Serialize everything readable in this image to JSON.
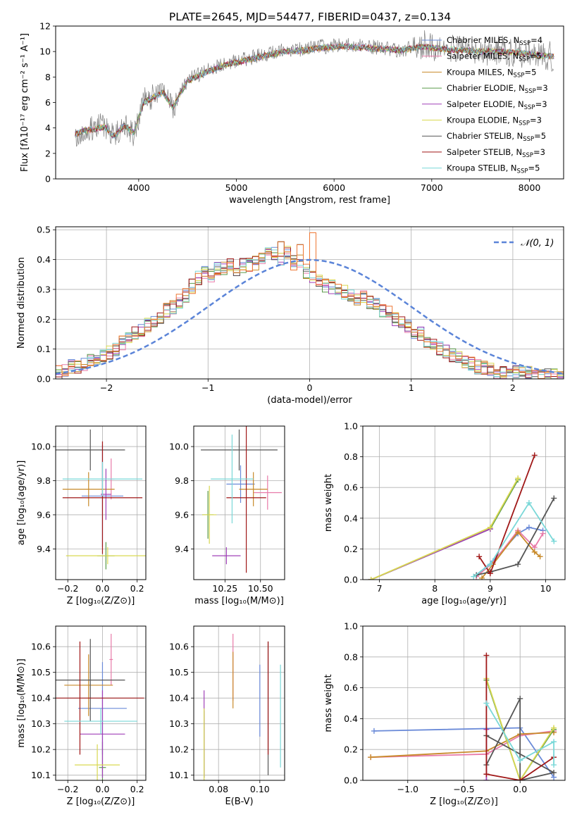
{
  "figure": {
    "title": "PLATE=2645, MJD=54477, FIBERID=0437, z=0.134"
  },
  "chart_data": [
    {
      "id": "spectrum",
      "type": "line",
      "xlabel": "wavelength [Angstrom, rest frame]",
      "ylabel": "Flux [fλ10⁻¹⁷ erg cm⁻² s⁻¹ A⁻¹]",
      "xlim": [
        3150,
        8350
      ],
      "ylim": [
        0,
        12
      ],
      "xticks": [
        4000,
        5000,
        6000,
        7000,
        8000
      ],
      "yticks": [
        0,
        2,
        4,
        6,
        8,
        10,
        12
      ],
      "grid": false,
      "legend_position": "upper-right",
      "observed": {
        "color": "#808080",
        "x": [
          3350,
          3450,
          3550,
          3650,
          3750,
          3850,
          3950,
          4050,
          4150,
          4250,
          4350,
          4500,
          4700,
          4900,
          5100,
          5300,
          5500,
          5700,
          5900,
          6100,
          6300,
          6500,
          6700,
          6900,
          7100,
          7300,
          7500,
          7700,
          7900,
          8100,
          8250
        ],
        "y": [
          3.4,
          3.9,
          4.0,
          4.3,
          3.2,
          4.4,
          3.5,
          6.2,
          6.5,
          6.9,
          5.4,
          7.8,
          8.5,
          9.1,
          9.4,
          9.8,
          10.1,
          10.2,
          10.4,
          10.5,
          10.4,
          10.3,
          10.1,
          10.6,
          10.3,
          10.2,
          10.0,
          10.1,
          9.9,
          9.7,
          9.6
        ]
      },
      "model": {
        "x": [
          3350,
          3450,
          3550,
          3650,
          3750,
          3850,
          3950,
          4050,
          4150,
          4250,
          4350,
          4500,
          4700,
          4900,
          5100,
          5300,
          5500,
          5700,
          5900,
          6100,
          6300,
          6500,
          6700,
          6900,
          7100,
          7300,
          7500,
          7700,
          7900,
          8100,
          8250
        ],
        "y": [
          3.5,
          3.8,
          3.9,
          4.1,
          3.3,
          4.2,
          3.6,
          6.0,
          6.4,
          6.8,
          5.6,
          7.7,
          8.4,
          9.0,
          9.3,
          9.7,
          10.0,
          10.1,
          10.3,
          10.4,
          10.3,
          10.2,
          10.1,
          10.4,
          10.2,
          10.1,
          10.0,
          10.0,
          9.9,
          9.7,
          9.6
        ]
      },
      "series": [
        {
          "name": "Chabrier MILES, N",
          "sub": "SSP",
          "suffix": "=4",
          "color": "#6a8ad8"
        },
        {
          "name": "Salpeter MILES, N",
          "sub": "SSP",
          "suffix": "=5",
          "color": "#e87aa8"
        },
        {
          "name": "Kroupa MILES, N",
          "sub": "SSP",
          "suffix": "=5",
          "color": "#c88a2a"
        },
        {
          "name": "Chabrier ELODIE, N",
          "sub": "SSP",
          "suffix": "=3",
          "color": "#5a9a4a"
        },
        {
          "name": "Salpeter ELODIE, N",
          "sub": "SSP",
          "suffix": "=3",
          "color": "#a040b8"
        },
        {
          "name": "Kroupa ELODIE, N",
          "sub": "SSP",
          "suffix": "=3",
          "color": "#d8d850"
        },
        {
          "name": "Chabrier STELIB, N",
          "sub": "SSP",
          "suffix": "=5",
          "color": "#555555"
        },
        {
          "name": "Salpeter STELIB, N",
          "sub": "SSP",
          "suffix": "=3",
          "color": "#a01818"
        },
        {
          "name": "Kroupa STELIB, N",
          "sub": "SSP",
          "suffix": "=5",
          "color": "#7ad8d8"
        }
      ]
    },
    {
      "id": "residuals",
      "type": "histogram",
      "xlabel": "(data-model)/error",
      "ylabel": "Normed distribution",
      "xlim": [
        -2.5,
        2.5
      ],
      "ylim": [
        0,
        0.51
      ],
      "xticks": [
        -2,
        -1,
        0,
        1,
        2
      ],
      "yticks": [
        0.0,
        0.1,
        0.2,
        0.3,
        0.4,
        0.5
      ],
      "grid": true,
      "legend_position": "upper-right",
      "normal_curve": {
        "label": "𝒩(0, 1)",
        "color": "#5b84d8",
        "mu": 0,
        "sigma": 1
      },
      "bin_edges_start": -2.5,
      "bin_width": 0.1,
      "base_values": [
        0.02,
        0.03,
        0.04,
        0.04,
        0.05,
        0.06,
        0.07,
        0.08,
        0.09,
        0.1,
        0.12,
        0.13,
        0.15,
        0.16,
        0.18,
        0.19,
        0.21,
        0.23,
        0.24,
        0.26,
        0.28,
        0.31,
        0.34,
        0.36,
        0.35,
        0.37,
        0.37,
        0.38,
        0.37,
        0.38,
        0.38,
        0.39,
        0.41,
        0.43,
        0.42,
        0.4,
        0.42,
        0.39,
        0.4,
        0.36,
        0.34,
        0.33,
        0.31,
        0.31,
        0.3,
        0.29,
        0.28,
        0.27,
        0.28,
        0.26,
        0.25,
        0.23,
        0.22,
        0.2,
        0.19,
        0.18,
        0.16,
        0.15,
        0.13,
        0.12,
        0.1,
        0.09,
        0.08,
        0.07,
        0.06,
        0.05,
        0.04,
        0.04,
        0.03,
        0.02,
        0.02,
        0.02,
        0.02,
        0.02,
        0.02,
        0.01,
        0.01,
        0.01,
        0.01,
        0.01
      ],
      "peaks": [
        {
          "bin": 35,
          "value": 0.46
        },
        {
          "bin": 40,
          "value": 0.49
        },
        {
          "bin": 38,
          "value": 0.45
        },
        {
          "bin": 33,
          "value": 0.42
        }
      ]
    },
    {
      "id": "age-vs-Z",
      "type": "errorbar",
      "xlabel": "Z [log₁₀(Z/Z⊙)]",
      "ylabel": "age  [log₁₀(age/yr)]",
      "xlim": [
        -0.27,
        0.25
      ],
      "ylim": [
        9.22,
        10.12
      ],
      "xticks": [
        -0.2,
        0.0,
        0.2
      ],
      "yticks": [
        9.4,
        9.6,
        9.8,
        10.0
      ],
      "grid": true,
      "points": [
        {
          "x": 0.0,
          "y": 9.71,
          "xerr": 0.12,
          "yerr": 0.3,
          "color": "#6a8ad8"
        },
        {
          "x": 0.05,
          "y": 9.81,
          "xerr": 0.02,
          "yerr": 0.12,
          "color": "#e87aa8"
        },
        {
          "x": -0.08,
          "y": 9.75,
          "xerr": 0.15,
          "yerr": 0.1,
          "color": "#c88a2a"
        },
        {
          "x": 0.02,
          "y": 9.36,
          "xerr": 0.05,
          "yerr": 0.08,
          "color": "#5a9a4a"
        },
        {
          "x": 0.02,
          "y": 9.72,
          "xerr": 0.03,
          "yerr": 0.15,
          "color": "#a040b8"
        },
        {
          "x": 0.03,
          "y": 9.36,
          "xerr": 0.24,
          "yerr": 0.05,
          "color": "#d8d850"
        },
        {
          "x": -0.07,
          "y": 9.98,
          "xerr": 0.2,
          "yerr": 0.12,
          "color": "#555555"
        },
        {
          "x": 0.0,
          "y": 9.7,
          "xerr": 0.23,
          "yerr": 0.33,
          "color": "#a01818"
        },
        {
          "x": 0.0,
          "y": 9.81,
          "xerr": 0.23,
          "yerr": 0.1,
          "color": "#7ad8d8"
        }
      ]
    },
    {
      "id": "age-vs-mass",
      "type": "errorbar",
      "xlabel": "mass [log₁₀(M/M⊙)]",
      "ylabel": "",
      "xlim": [
        10.03,
        10.67
      ],
      "ylim": [
        9.22,
        10.12
      ],
      "xticks": [
        10.25,
        10.5
      ],
      "yticks": [
        9.4,
        9.6,
        9.8,
        10.0
      ],
      "grid": true,
      "points": [
        {
          "x": 10.36,
          "y": 9.78,
          "xerr": 0.1,
          "yerr": 0.11,
          "color": "#6a8ad8"
        },
        {
          "x": 10.55,
          "y": 9.73,
          "xerr": 0.1,
          "yerr": 0.1,
          "color": "#e87aa8"
        },
        {
          "x": 10.45,
          "y": 9.75,
          "xerr": 0.1,
          "yerr": 0.1,
          "color": "#c88a2a"
        },
        {
          "x": 10.13,
          "y": 9.6,
          "xerr": 0.04,
          "yerr": 0.14,
          "color": "#5a9a4a"
        },
        {
          "x": 10.26,
          "y": 9.36,
          "xerr": 0.1,
          "yerr": 0.05,
          "color": "#a040b8"
        },
        {
          "x": 10.14,
          "y": 9.6,
          "xerr": 0.05,
          "yerr": 0.17,
          "color": "#d8d850"
        },
        {
          "x": 10.35,
          "y": 9.98,
          "xerr": 0.27,
          "yerr": 0.12,
          "color": "#555555"
        },
        {
          "x": 10.4,
          "y": 9.7,
          "xerr": 0.14,
          "yerr": 0.44,
          "color": "#a01818"
        },
        {
          "x": 10.3,
          "y": 9.81,
          "xerr": 0.15,
          "yerr": 0.26,
          "color": "#7ad8d8"
        }
      ]
    },
    {
      "id": "weight-vs-age",
      "type": "line",
      "xlabel": "age  [log₁₀(age/yr)]",
      "ylabel": "mass weight",
      "xlim": [
        6.7,
        10.35
      ],
      "ylim": [
        0,
        1.0
      ],
      "xticks": [
        7,
        8,
        9,
        10
      ],
      "yticks": [
        0.0,
        0.2,
        0.4,
        0.6,
        0.8,
        1.0
      ],
      "grid": true,
      "series": [
        {
          "color": "#6a8ad8",
          "x": [
            8.75,
            9.05,
            9.5,
            9.7,
            9.95
          ],
          "y": [
            0.03,
            0.12,
            0.3,
            0.34,
            0.32
          ]
        },
        {
          "color": "#e87aa8",
          "x": [
            8.75,
            9.05,
            9.5,
            9.8,
            9.95
          ],
          "y": [
            0.02,
            0.11,
            0.32,
            0.21,
            0.3
          ]
        },
        {
          "color": "#c88a2a",
          "x": [
            8.85,
            9.05,
            9.5,
            9.8,
            9.9
          ],
          "y": [
            0.01,
            0.1,
            0.31,
            0.18,
            0.15
          ]
        },
        {
          "color": "#5a9a4a",
          "x": [
            6.85,
            9.0,
            9.5
          ],
          "y": [
            0.0,
            0.33,
            0.65
          ]
        },
        {
          "color": "#a040b8",
          "x": [
            6.85,
            9.0
          ],
          "y": [
            0.0,
            0.33
          ]
        },
        {
          "color": "#d8d850",
          "x": [
            6.85,
            9.0,
            9.5
          ],
          "y": [
            0.0,
            0.34,
            0.66
          ]
        },
        {
          "color": "#555555",
          "x": [
            8.75,
            9.0,
            9.5,
            10.15
          ],
          "y": [
            0.03,
            0.05,
            0.1,
            0.53
          ]
        },
        {
          "color": "#a01818",
          "x": [
            8.8,
            9.0,
            9.8
          ],
          "y": [
            0.15,
            0.04,
            0.81
          ]
        },
        {
          "color": "#7ad8d8",
          "x": [
            8.7,
            9.0,
            9.7,
            10.15
          ],
          "y": [
            0.02,
            0.1,
            0.5,
            0.25
          ]
        }
      ]
    },
    {
      "id": "mass-vs-Z",
      "type": "errorbar",
      "xlabel": "Z [log₁₀(Z/Z⊙)]",
      "ylabel": "mass [log₁₀(M/M⊙)]",
      "xlim": [
        -0.27,
        0.25
      ],
      "ylim": [
        10.08,
        10.68
      ],
      "xticks": [
        -0.2,
        0.0,
        0.2
      ],
      "yticks": [
        10.1,
        10.2,
        10.3,
        10.4,
        10.5,
        10.6
      ],
      "grid": true,
      "points": [
        {
          "x": 0.0,
          "y": 10.36,
          "xerr": 0.14,
          "yerr": 0.18,
          "color": "#6a8ad8"
        },
        {
          "x": 0.05,
          "y": 10.55,
          "xerr": 0.01,
          "yerr": 0.1,
          "color": "#e87aa8"
        },
        {
          "x": -0.08,
          "y": 10.45,
          "xerr": 0.14,
          "yerr": 0.12,
          "color": "#c88a2a"
        },
        {
          "x": 0.0,
          "y": 10.13,
          "xerr": 0.02,
          "yerr": 0.1,
          "color": "#5a9a4a"
        },
        {
          "x": 0.0,
          "y": 10.26,
          "xerr": 0.13,
          "yerr": 0.17,
          "color": "#a040b8"
        },
        {
          "x": -0.03,
          "y": 10.14,
          "xerr": 0.13,
          "yerr": 0.08,
          "color": "#d8d850"
        },
        {
          "x": -0.07,
          "y": 10.47,
          "xerr": 0.2,
          "yerr": 0.16,
          "color": "#555555"
        },
        {
          "x": -0.13,
          "y": 10.4,
          "xerr": 0.37,
          "yerr": 0.22,
          "color": "#a01818"
        },
        {
          "x": -0.01,
          "y": 10.31,
          "xerr": 0.21,
          "yerr": 0.05,
          "color": "#7ad8d8"
        }
      ]
    },
    {
      "id": "mass-vs-EBV",
      "type": "errorbar",
      "xlabel": "E(B-V)",
      "ylabel": "",
      "xlim": [
        0.068,
        0.112
      ],
      "ylim": [
        10.08,
        10.68
      ],
      "xticks": [
        0.08,
        0.1
      ],
      "yticks": [
        10.1,
        10.2,
        10.3,
        10.4,
        10.5,
        10.6
      ],
      "grid": true,
      "points": [
        {
          "x": 0.1,
          "y": 10.39,
          "yerr": 0.14,
          "color": "#6a8ad8"
        },
        {
          "x": 0.087,
          "y": 10.52,
          "yerr": 0.13,
          "color": "#e87aa8"
        },
        {
          "x": 0.087,
          "y": 10.47,
          "yerr": 0.11,
          "color": "#c88a2a"
        },
        {
          "x": 0.073,
          "y": 10.22,
          "yerr": 0.13,
          "color": "#5a9a4a"
        },
        {
          "x": 0.073,
          "y": 10.26,
          "yerr": 0.17,
          "color": "#a040b8"
        },
        {
          "x": 0.073,
          "y": 10.22,
          "yerr": 0.14,
          "color": "#d8d850"
        },
        {
          "x": 0.104,
          "y": 10.36,
          "yerr": 0.26,
          "color": "#555555"
        },
        {
          "x": 0.104,
          "y": 10.4,
          "yerr": 0.22,
          "color": "#a01818"
        },
        {
          "x": 0.11,
          "y": 10.33,
          "yerr": 0.2,
          "color": "#7ad8d8"
        }
      ]
    },
    {
      "id": "weight-vs-Z",
      "type": "line",
      "xlabel": "Z [log₁₀(Z/Z⊙)]",
      "ylabel": "mass weight",
      "xlim": [
        -1.4,
        0.4
      ],
      "ylim": [
        0,
        1.0
      ],
      "xticks": [
        -1.0,
        -0.5,
        0.0
      ],
      "yticks": [
        0.0,
        0.2,
        0.4,
        0.6,
        0.8,
        1.0
      ],
      "grid": true,
      "series": [
        {
          "color": "#6a8ad8",
          "x": [
            -1.3,
            0.0,
            0.3
          ],
          "y": [
            0.32,
            0.34,
            0.02
          ]
        },
        {
          "color": "#e87aa8",
          "x": [
            -1.33,
            -0.3,
            0.0,
            0.3
          ],
          "y": [
            0.15,
            0.17,
            0.29,
            0.32
          ]
        },
        {
          "color": "#c88a2a",
          "x": [
            -1.33,
            -0.3,
            0.0,
            0.3
          ],
          "y": [
            0.15,
            0.19,
            0.3,
            0.31
          ]
        },
        {
          "color": "#5a9a4a",
          "x": [
            -0.3,
            0.0,
            0.3
          ],
          "y": [
            0.65,
            0.0,
            0.33
          ]
        },
        {
          "color": "#a040b8",
          "x": [
            -0.3,
            -0.3
          ],
          "y": [
            0.0,
            0.33
          ]
        },
        {
          "color": "#d8d850",
          "x": [
            -0.3,
            0.0,
            0.3
          ],
          "y": [
            0.66,
            0.0,
            0.34
          ]
        },
        {
          "color": "#555555",
          "x": [
            -0.3,
            0.0,
            0.0,
            0.3,
            -0.3
          ],
          "y": [
            0.1,
            0.53,
            0.0,
            0.05,
            0.29
          ]
        },
        {
          "color": "#a01818",
          "x": [
            -0.3,
            -0.3,
            0.0,
            0.3
          ],
          "y": [
            0.81,
            0.04,
            0.0,
            0.15
          ]
        },
        {
          "color": "#7ad8d8",
          "x": [
            -0.3,
            0.0,
            0.3,
            0.3
          ],
          "y": [
            0.5,
            0.13,
            0.25,
            0.1
          ]
        }
      ]
    }
  ]
}
